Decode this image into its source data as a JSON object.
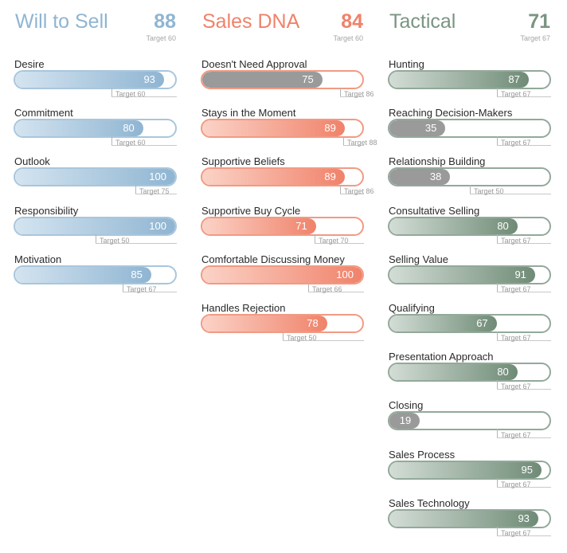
{
  "chart_data": [
    {
      "type": "bar",
      "title": "Will to Sell",
      "score": "88",
      "target_label": "Target 60",
      "color": "#8fb5d2",
      "fill_from": "#d4e4f0",
      "fill_to": "#8fb5d2",
      "below_target_color": "#9a9a9a",
      "border_color": "#a9c6dc",
      "xlim": [
        0,
        100
      ],
      "items": [
        {
          "label": "Desire",
          "value": 93,
          "target": 60,
          "target_label": "Target 60"
        },
        {
          "label": "Commitment",
          "value": 80,
          "target": 60,
          "target_label": "Target 60"
        },
        {
          "label": "Outlook",
          "value": 100,
          "target": 75,
          "target_label": "Target 75"
        },
        {
          "label": "Responsibility",
          "value": 100,
          "target": 50,
          "target_label": "Target 50"
        },
        {
          "label": "Motivation",
          "value": 85,
          "target": 67,
          "target_label": "Target 67"
        }
      ]
    },
    {
      "type": "bar",
      "title": "Sales DNA",
      "score": "84",
      "target_label": "Target 60",
      "color": "#f0826a",
      "fill_from": "#fbd3c7",
      "fill_to": "#f0826a",
      "below_target_color": "#9a9a9a",
      "border_color": "#f29a83",
      "xlim": [
        0,
        100
      ],
      "items": [
        {
          "label": "Doesn't Need Approval",
          "value": 75,
          "target": 86,
          "target_label": "Target 86"
        },
        {
          "label": "Stays in the Moment",
          "value": 89,
          "target": 88,
          "target_label": "Target 88"
        },
        {
          "label": "Supportive Beliefs",
          "value": 89,
          "target": 86,
          "target_label": "Target 86"
        },
        {
          "label": "Supportive Buy Cycle",
          "value": 71,
          "target": 70,
          "target_label": "Target 70"
        },
        {
          "label": "Comfortable Discussing Money",
          "value": 100,
          "target": 66,
          "target_label": "Target 66"
        },
        {
          "label": "Handles Rejection",
          "value": 78,
          "target": 50,
          "target_label": "Target 50"
        }
      ]
    },
    {
      "type": "bar",
      "title": "Tactical",
      "score": "71",
      "target_label": "Target 67",
      "color": "#7a9582",
      "fill_from": "#d3ddd6",
      "fill_to": "#6f8b76",
      "below_target_color": "#9a9a9a",
      "border_color": "#93a99a",
      "xlim": [
        0,
        100
      ],
      "items": [
        {
          "label": "Hunting",
          "value": 87,
          "target": 67,
          "target_label": "Target 67"
        },
        {
          "label": "Reaching Decision-Makers",
          "value": 35,
          "target": 67,
          "target_label": "Target 67"
        },
        {
          "label": "Relationship Building",
          "value": 38,
          "target": 50,
          "target_label": "Target 50"
        },
        {
          "label": "Consultative Selling",
          "value": 80,
          "target": 67,
          "target_label": "Target 67"
        },
        {
          "label": "Selling Value",
          "value": 91,
          "target": 67,
          "target_label": "Target 67"
        },
        {
          "label": "Qualifying",
          "value": 67,
          "target": 67,
          "target_label": "Target 67"
        },
        {
          "label": "Presentation Approach",
          "value": 80,
          "target": 67,
          "target_label": "Target 67"
        },
        {
          "label": "Closing",
          "value": 19,
          "target": 67,
          "target_label": "Target 67"
        },
        {
          "label": "Sales Process",
          "value": 95,
          "target": 67,
          "target_label": "Target 67"
        },
        {
          "label": "Sales Technology",
          "value": 93,
          "target": 67,
          "target_label": "Target 67"
        }
      ]
    }
  ]
}
